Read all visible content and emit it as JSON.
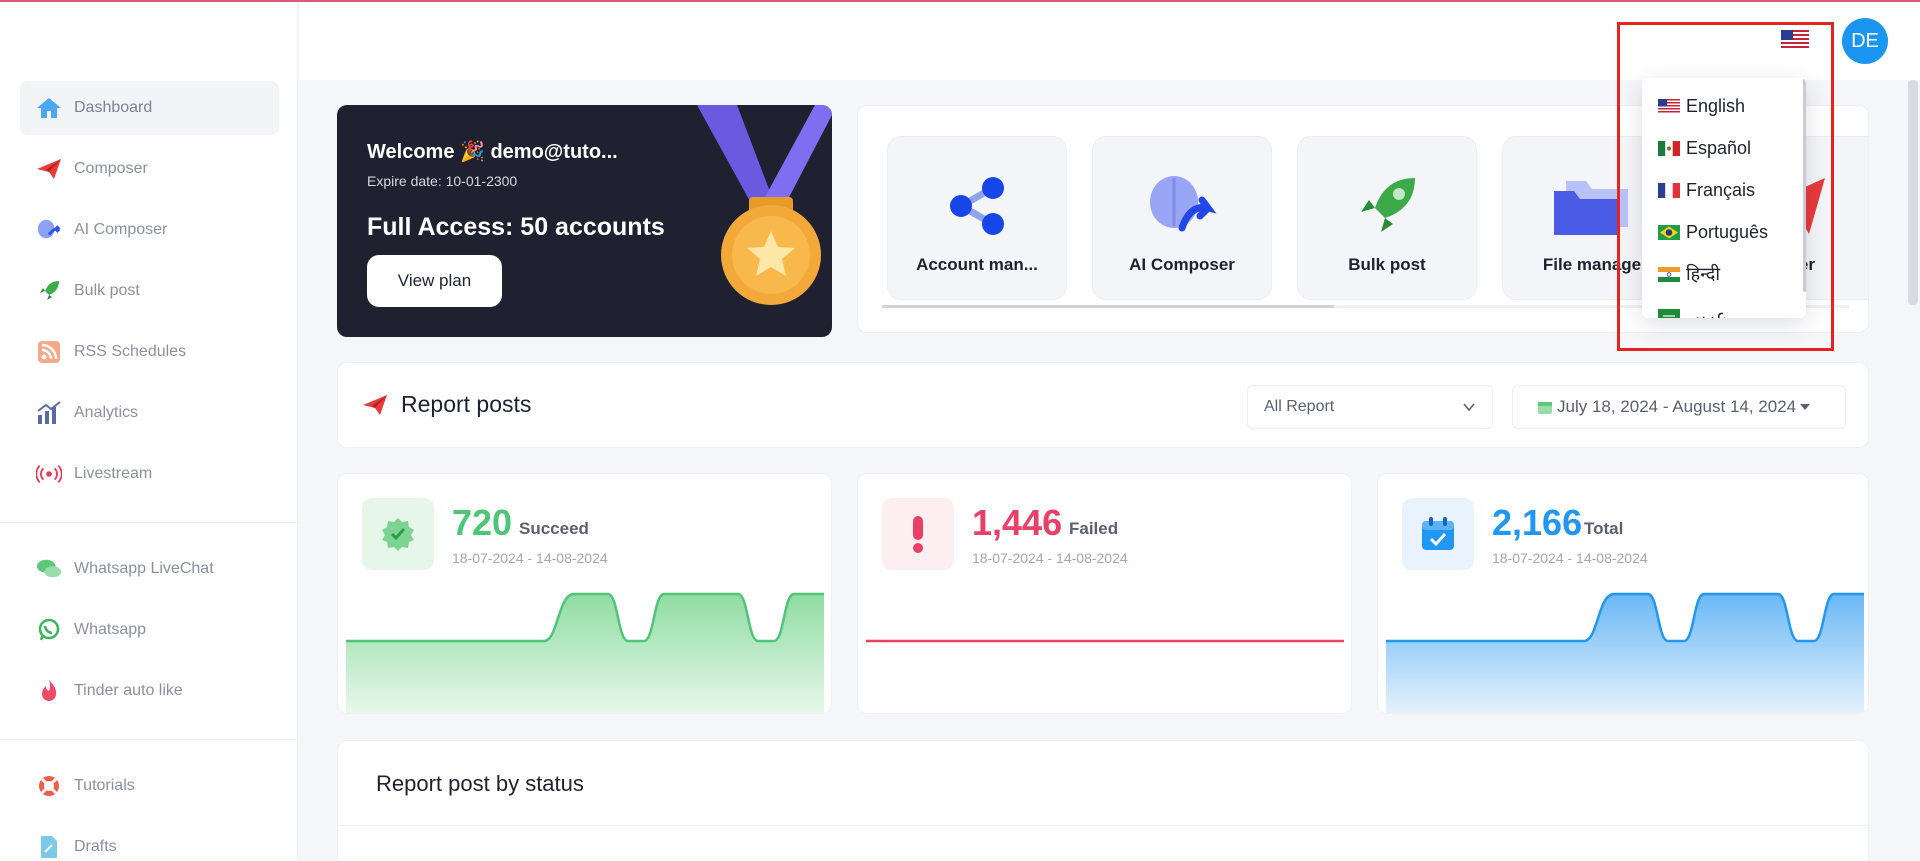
{
  "sidebar": {
    "items": [
      {
        "label": "Dashboard",
        "icon": "home-icon"
      },
      {
        "label": "Composer",
        "icon": "paper-plane-icon"
      },
      {
        "label": "AI Composer",
        "icon": "ai-brain-icon"
      },
      {
        "label": "Bulk post",
        "icon": "rocket-icon"
      },
      {
        "label": "RSS Schedules",
        "icon": "rss-icon"
      },
      {
        "label": "Analytics",
        "icon": "bar-chart-icon"
      },
      {
        "label": "Livestream",
        "icon": "livestream-icon"
      },
      {
        "label": "Whatsapp LiveChat",
        "icon": "chat-bubbles-icon"
      },
      {
        "label": "Whatsapp",
        "icon": "whatsapp-icon"
      },
      {
        "label": "Tinder auto like",
        "icon": "flame-icon"
      },
      {
        "label": "Tutorials",
        "icon": "lifebuoy-icon"
      },
      {
        "label": "Drafts",
        "icon": "draft-file-icon"
      }
    ]
  },
  "header": {
    "avatar_initials": "DE",
    "flag": "us-flag-icon"
  },
  "welcome": {
    "title": "Welcome 🎉 demo@tuto...",
    "expire": "Expire date: 10-01-2300",
    "access": "Full Access: 50 accounts",
    "button": "View plan"
  },
  "quick_access": {
    "tiles": [
      {
        "label": "Account man...",
        "icon": "share-icon"
      },
      {
        "label": "AI Composer",
        "icon": "ai-brain-icon"
      },
      {
        "label": "Bulk post",
        "icon": "rocket-icon"
      },
      {
        "label": "File manage",
        "icon": "folder-icon"
      },
      {
        "label": "oser",
        "icon": "paper-plane-icon"
      }
    ]
  },
  "report": {
    "title": "Report posts",
    "filter": "All Report",
    "date_range": "July 18, 2024 - August 14, 2024"
  },
  "stats": [
    {
      "value": "720",
      "label": "Succeed",
      "range": "18-07-2024 - 14-08-2024",
      "color": "#4fc577"
    },
    {
      "value": "1,446",
      "label": "Failed",
      "range": "18-07-2024 - 14-08-2024",
      "color": "#e94067"
    },
    {
      "value": "2,166",
      "label": "Total",
      "range": "18-07-2024 - 14-08-2024",
      "color": "#2196f3"
    }
  ],
  "status_section": {
    "title": "Report post by status"
  },
  "language_dropdown": {
    "options": [
      {
        "label": "English",
        "flag": "us-flag-icon"
      },
      {
        "label": "Español",
        "flag": "mexico-flag-icon"
      },
      {
        "label": "Français",
        "flag": "france-flag-icon"
      },
      {
        "label": "Português",
        "flag": "brazil-flag-icon"
      },
      {
        "label": "हिन्दी",
        "flag": "india-flag-icon"
      },
      {
        "label": "عربي",
        "flag": "saudi-flag-icon"
      }
    ]
  }
}
